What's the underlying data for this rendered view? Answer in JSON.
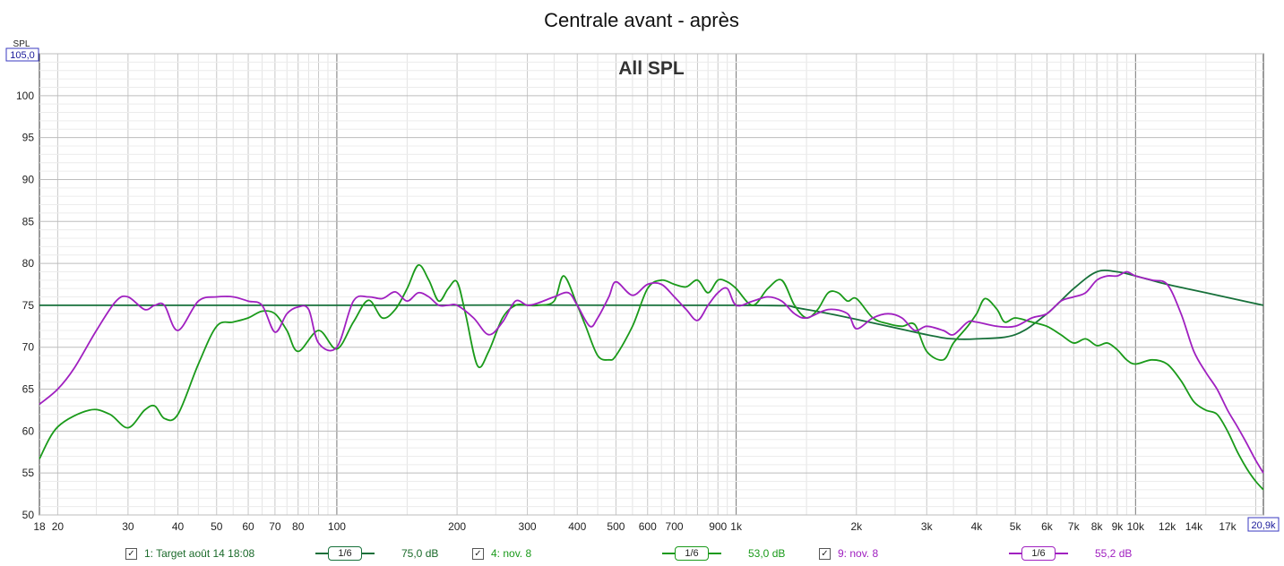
{
  "chart_data": {
    "type": "line",
    "title": "Centrale avant - après",
    "subtitle": "All SPL",
    "ylabel": "SPL",
    "x_scale": "log",
    "xlim": [
      18,
      20900
    ],
    "ylim": [
      50,
      105
    ],
    "grid": true,
    "x_ticks": [
      {
        "v": 18,
        "label": "18"
      },
      {
        "v": 20,
        "label": "20"
      },
      {
        "v": 30,
        "label": "30"
      },
      {
        "v": 40,
        "label": "40"
      },
      {
        "v": 50,
        "label": "50"
      },
      {
        "v": 60,
        "label": "60"
      },
      {
        "v": 70,
        "label": "70"
      },
      {
        "v": 80,
        "label": "80"
      },
      {
        "v": 100,
        "label": "100"
      },
      {
        "v": 200,
        "label": "200"
      },
      {
        "v": 300,
        "label": "300"
      },
      {
        "v": 400,
        "label": "400"
      },
      {
        "v": 500,
        "label": "500"
      },
      {
        "v": 600,
        "label": "600"
      },
      {
        "v": 700,
        "label": "700"
      },
      {
        "v": 900,
        "label": "900"
      },
      {
        "v": 1000,
        "label": "1k"
      },
      {
        "v": 2000,
        "label": "2k"
      },
      {
        "v": 3000,
        "label": "3k"
      },
      {
        "v": 4000,
        "label": "4k"
      },
      {
        "v": 5000,
        "label": "5k"
      },
      {
        "v": 6000,
        "label": "6k"
      },
      {
        "v": 7000,
        "label": "7k"
      },
      {
        "v": 8000,
        "label": "8k"
      },
      {
        "v": 9000,
        "label": "9k"
      },
      {
        "v": 10000,
        "label": "10k"
      },
      {
        "v": 12000,
        "label": "12k"
      },
      {
        "v": 14000,
        "label": "14k"
      },
      {
        "v": 17000,
        "label": "17k"
      }
    ],
    "x_end_label": "20,9k",
    "y_ticks": [
      {
        "v": 50,
        "label": "50"
      },
      {
        "v": 55,
        "label": "55"
      },
      {
        "v": 60,
        "label": "60"
      },
      {
        "v": 65,
        "label": "65"
      },
      {
        "v": 70,
        "label": "70"
      },
      {
        "v": 75,
        "label": "75"
      },
      {
        "v": 80,
        "label": "80"
      },
      {
        "v": 85,
        "label": "85"
      },
      {
        "v": 90,
        "label": "90"
      },
      {
        "v": 95,
        "label": "95"
      },
      {
        "v": 100,
        "label": "100"
      }
    ],
    "y_top_label": "105,0",
    "series": [
      {
        "name": "1: Target août 14 18:08",
        "color": "#17703a",
        "x": [
          18,
          100,
          1000,
          1500,
          3000,
          3500,
          4000,
          5000,
          6000,
          7000,
          8000,
          9000,
          10000,
          12000,
          15000,
          20900
        ],
        "y": [
          75,
          75,
          75,
          74.5,
          71.5,
          71,
          71,
          71.5,
          74,
          77,
          79,
          79,
          78.5,
          77.5,
          76.5,
          75
        ]
      },
      {
        "name": "4: nov. 8",
        "color": "#1a9a1a",
        "x": [
          18,
          20,
          24,
          27,
          30,
          33,
          35,
          37,
          40,
          45,
          50,
          55,
          60,
          65,
          70,
          75,
          80,
          90,
          100,
          110,
          120,
          130,
          140,
          150,
          160,
          170,
          180,
          190,
          200,
          210,
          225,
          240,
          260,
          280,
          300,
          320,
          350,
          370,
          400,
          420,
          450,
          480,
          500,
          550,
          600,
          650,
          700,
          750,
          800,
          850,
          900,
          950,
          1000,
          1100,
          1200,
          1300,
          1400,
          1500,
          1600,
          1700,
          1800,
          1900,
          2000,
          2200,
          2400,
          2600,
          2800,
          3000,
          3300,
          3500,
          3800,
          4000,
          4200,
          4500,
          4700,
          5000,
          5500,
          6000,
          6500,
          7000,
          7500,
          8000,
          8500,
          9000,
          9500,
          10000,
          11000,
          12000,
          13000,
          14000,
          15000,
          16000,
          17000,
          18000,
          19000,
          20000,
          20900
        ],
        "y": [
          56.7,
          60.5,
          62.5,
          62,
          60.4,
          62.5,
          63,
          61.5,
          62,
          68,
          72.5,
          73,
          73.5,
          74.3,
          74,
          72,
          69.5,
          72,
          69.8,
          73,
          75.6,
          73.5,
          74.5,
          77,
          79.8,
          78,
          75.5,
          77,
          77.8,
          74,
          67.8,
          69.5,
          73.5,
          75,
          75,
          75,
          75.5,
          78.5,
          75,
          72.5,
          69,
          68.5,
          69,
          72.5,
          77,
          78,
          77.5,
          77.2,
          78,
          76.5,
          78,
          77.8,
          77,
          75,
          77,
          78,
          75,
          73.5,
          74.5,
          76.5,
          76.5,
          75.5,
          75.8,
          73.5,
          72.8,
          72.5,
          72.7,
          69.5,
          68.5,
          70.5,
          72.5,
          74,
          75.8,
          74.5,
          73,
          73.5,
          73,
          72.5,
          71.5,
          70.5,
          71,
          70.2,
          70.5,
          69.7,
          68.5,
          68,
          68.5,
          68,
          66,
          63.5,
          62.5,
          62,
          60,
          57.5,
          55.5,
          54,
          53
        ]
      },
      {
        "name": "9: nov. 8",
        "color": "#a020c0",
        "x": [
          18,
          20,
          22,
          25,
          28,
          30,
          33,
          35,
          37,
          40,
          45,
          50,
          55,
          60,
          65,
          70,
          75,
          80,
          85,
          90,
          100,
          110,
          120,
          130,
          140,
          150,
          160,
          170,
          180,
          190,
          200,
          220,
          240,
          260,
          280,
          300,
          320,
          350,
          380,
          400,
          430,
          450,
          480,
          500,
          550,
          600,
          650,
          700,
          750,
          800,
          850,
          900,
          950,
          1000,
          1100,
          1200,
          1300,
          1400,
          1500,
          1700,
          1900,
          2000,
          2200,
          2400,
          2600,
          2800,
          3000,
          3300,
          3500,
          3800,
          4000,
          4500,
          5000,
          5500,
          6000,
          6500,
          7000,
          7500,
          8000,
          8500,
          9000,
          9500,
          10000,
          11000,
          12000,
          13000,
          14000,
          15000,
          16000,
          17000,
          18000,
          19000,
          20000,
          20900
        ],
        "y": [
          63.2,
          65,
          67.5,
          72,
          75.5,
          76,
          74.5,
          75,
          75,
          72,
          75.5,
          76,
          76,
          75.5,
          75,
          71.8,
          74,
          74.8,
          74.5,
          70.5,
          70,
          75.5,
          76,
          75.8,
          76.6,
          75.5,
          76.5,
          76,
          75,
          75,
          75,
          73.5,
          71.5,
          73,
          75.5,
          75,
          75.3,
          76,
          76.5,
          75,
          72.5,
          73.5,
          76,
          77.8,
          76.2,
          77.5,
          77.5,
          76,
          74.5,
          73.2,
          75,
          76.5,
          77,
          75,
          75.5,
          76,
          75.5,
          74,
          73.5,
          74.5,
          74,
          72.2,
          73.5,
          74,
          73.5,
          72,
          72.5,
          72,
          71.5,
          73,
          73,
          72.5,
          72.5,
          73.5,
          74,
          75.5,
          76,
          76.5,
          78,
          78.5,
          78.5,
          79,
          78.5,
          78,
          77.5,
          74,
          69.5,
          67,
          65,
          62.5,
          60.5,
          58.5,
          56.5,
          55
        ]
      }
    ]
  },
  "legend": [
    {
      "name": "1: Target août 14 18:08",
      "smoothing": "1/6",
      "value": "75,0 dB",
      "color": "#17703a",
      "checked": "✓"
    },
    {
      "name": "4: nov. 8",
      "smoothing": "1/6",
      "value": "53,0 dB",
      "color": "#1a9a1a",
      "checked": "✓"
    },
    {
      "name": "9: nov. 8",
      "smoothing": "1/6",
      "value": "55,2 dB",
      "color": "#a020c0",
      "checked": "✓"
    }
  ]
}
